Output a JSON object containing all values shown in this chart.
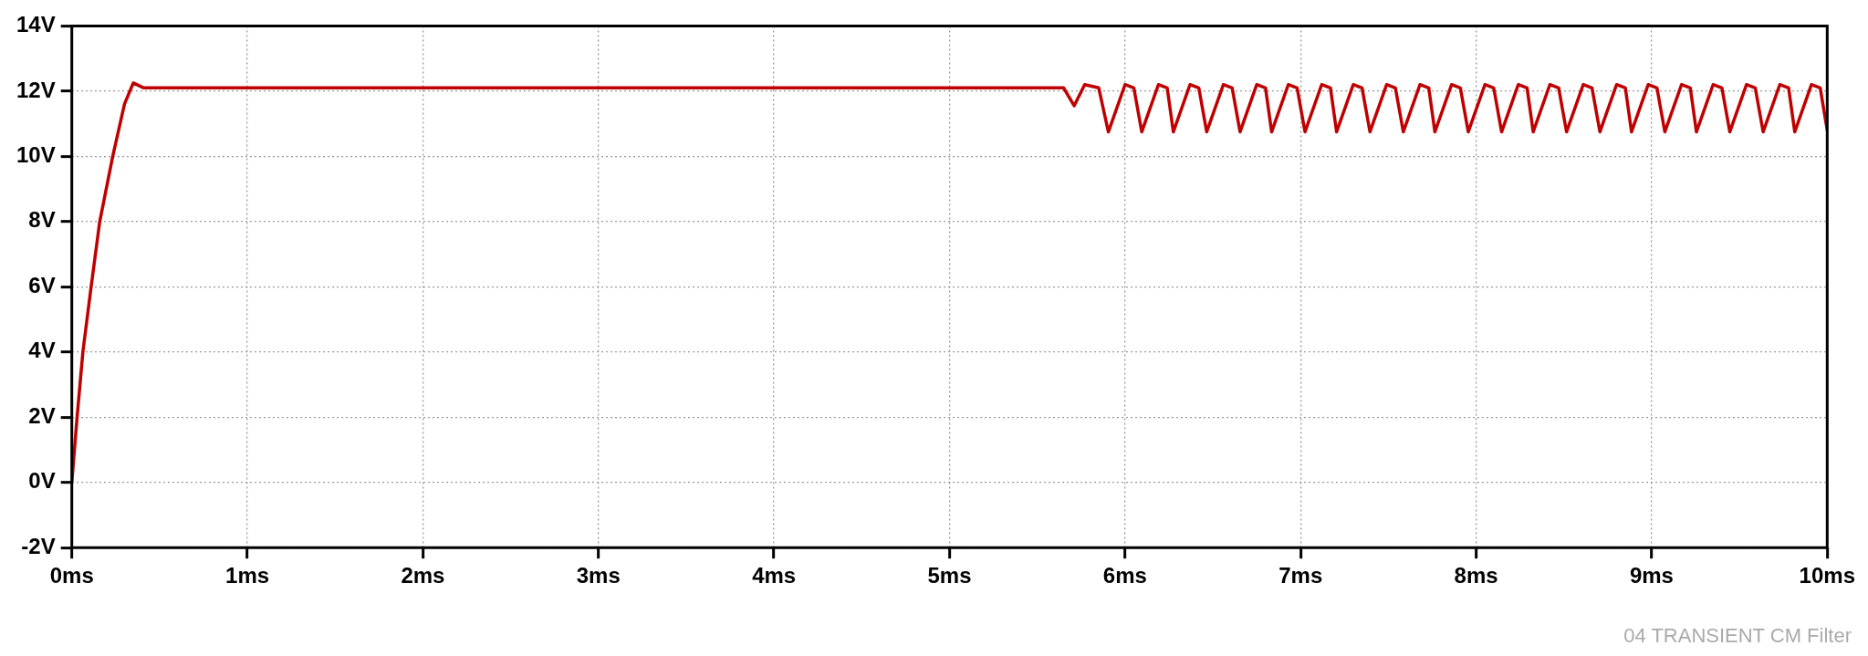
{
  "chart_data": {
    "type": "line",
    "annotations": [
      "04 TRANSIENT CM Filter"
    ],
    "x": [
      0,
      0.03,
      0.063,
      0.11,
      0.159,
      0.233,
      0.3,
      0.35,
      0.41,
      5.65,
      5.71,
      5.77,
      5.85,
      5.905,
      6.0,
      6.05,
      6.095,
      6.19,
      6.24,
      6.275,
      6.37,
      6.42,
      6.465,
      6.56,
      6.61,
      6.655,
      6.75,
      6.8,
      6.835,
      6.93,
      6.98,
      7.025,
      7.12,
      7.17,
      7.205,
      7.3,
      7.35,
      7.395,
      7.49,
      7.54,
      7.585,
      7.68,
      7.73,
      7.765,
      7.86,
      7.91,
      7.955,
      8.05,
      8.1,
      8.145,
      8.24,
      8.29,
      8.325,
      8.42,
      8.47,
      8.515,
      8.61,
      8.66,
      8.705,
      8.8,
      8.85,
      8.885,
      8.98,
      9.03,
      9.075,
      9.17,
      9.22,
      9.255,
      9.35,
      9.4,
      9.445,
      9.54,
      9.59,
      9.635,
      9.73,
      9.78,
      9.815,
      9.91,
      9.96,
      10.0
    ],
    "series": [
      {
        "color": "#c00000",
        "values": [
          0,
          2,
          4,
          6,
          8,
          10,
          11.6,
          12.25,
          12.1,
          12.1,
          11.55,
          12.2,
          12.1,
          10.75,
          12.2,
          12.1,
          10.75,
          12.2,
          12.1,
          10.75,
          12.2,
          12.1,
          10.75,
          12.2,
          12.1,
          10.75,
          12.2,
          12.1,
          10.75,
          12.2,
          12.1,
          10.75,
          12.2,
          12.1,
          10.75,
          12.2,
          12.1,
          10.75,
          12.2,
          12.1,
          10.75,
          12.2,
          12.1,
          10.75,
          12.2,
          12.1,
          10.75,
          12.2,
          12.1,
          10.75,
          12.2,
          12.1,
          10.75,
          12.2,
          12.1,
          10.75,
          12.2,
          12.1,
          10.75,
          12.2,
          12.1,
          10.75,
          12.2,
          12.1,
          10.75,
          12.2,
          12.1,
          10.75,
          12.2,
          12.1,
          10.75,
          12.2,
          12.1,
          10.75,
          12.2,
          12.1,
          10.75,
          12.2,
          12.1,
          10.8
        ]
      }
    ],
    "xlim": [
      0,
      10
    ],
    "xticks": [
      {
        "value": 0,
        "label": "0ms"
      },
      {
        "value": 1,
        "label": "1ms"
      },
      {
        "value": 2,
        "label": "2ms"
      },
      {
        "value": 3,
        "label": "3ms"
      },
      {
        "value": 4,
        "label": "4ms"
      },
      {
        "value": 5,
        "label": "5ms"
      },
      {
        "value": 6,
        "label": "6ms"
      },
      {
        "value": 7,
        "label": "7ms"
      },
      {
        "value": 8,
        "label": "8ms"
      },
      {
        "value": 9,
        "label": "9ms"
      },
      {
        "value": 10,
        "label": "10ms"
      }
    ],
    "ylim": [
      -2,
      14
    ],
    "yticks": [
      {
        "value": -2,
        "label": "-2V"
      },
      {
        "value": 0,
        "label": "0V"
      },
      {
        "value": 2,
        "label": "2V"
      },
      {
        "value": 4,
        "label": "4V"
      },
      {
        "value": 6,
        "label": "6V"
      },
      {
        "value": 8,
        "label": "8V"
      },
      {
        "value": 10,
        "label": "10V"
      },
      {
        "value": 12,
        "label": "12V"
      },
      {
        "value": 14,
        "label": "14V"
      }
    ],
    "grid": true,
    "legend": false,
    "marker": "none",
    "line_style": "solid"
  }
}
